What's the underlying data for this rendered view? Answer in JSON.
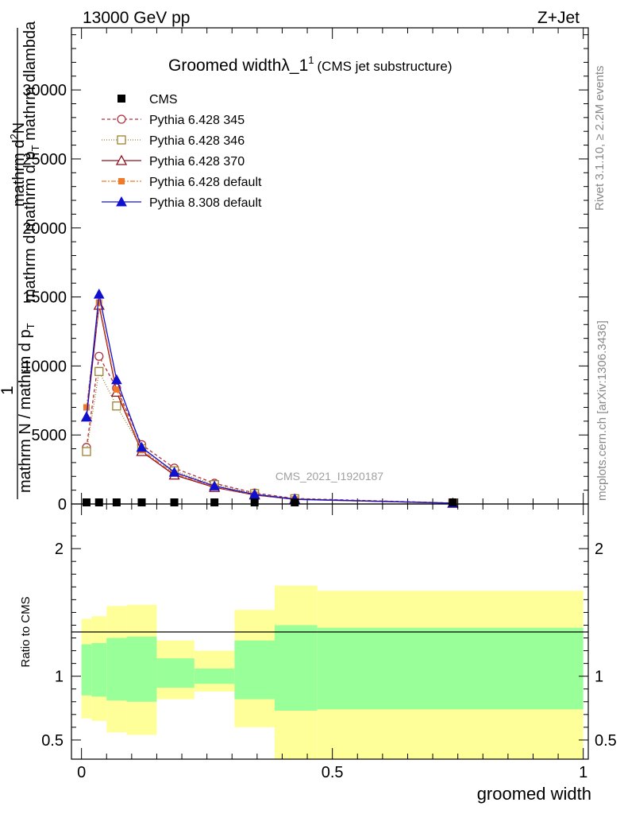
{
  "header": {
    "left": "13000 GeV pp",
    "right": "Z+Jet"
  },
  "side_labels": {
    "rivet": "Rivet 3.1.10, ≥ 2.2M events",
    "site": "mcplots.cern.ch [arXiv:1306.3436]"
  },
  "main_plot": {
    "title_main": "Groomed widthλ_1",
    "title_sup": "1",
    "title_sub": "(CMS jet substructure)",
    "watermark": "CMS_2021_I1920187",
    "ylabel": {
      "num_top": "1",
      "num_main": "mathrm d",
      "num_sup": "2",
      "num_rest": "N",
      "den_top": "mathrm N / mathrm d p",
      "den_sub": "T",
      "den_rest": " mathrm d lambda",
      "inner_left": "mathrm d p",
      "inner_sub": "T",
      "inner_rest": " mathrm dlambda",
      "big_one": "1"
    },
    "ylabel_lines": [
      "1",
      "mathrm d²N",
      "mathrm N / mathrm d p_T mathrm d lambda"
    ]
  },
  "ratio_plot": {
    "ylabel": "Ratio to CMS",
    "xlabel": "groomed width"
  },
  "legend": [
    {
      "name": "CMS",
      "color": "#000000",
      "marker": "square-filled",
      "dash": "none"
    },
    {
      "name": "Pythia 6.428 345",
      "color": "#b03040",
      "marker": "circle-open",
      "dash": "4,3"
    },
    {
      "name": "Pythia 6.428 346",
      "color": "#a08030",
      "marker": "square-open",
      "dash": "1,2"
    },
    {
      "name": "Pythia 6.428 370",
      "color": "#8b1020",
      "marker": "triangle-open",
      "dash": "none"
    },
    {
      "name": "Pythia 6.428 default",
      "color": "#f07a28",
      "marker": "square-filled-small",
      "dash": "6,2,2,2"
    },
    {
      "name": "Pythia 8.308 default",
      "color": "#1010d0",
      "marker": "triangle-filled",
      "dash": "none"
    }
  ],
  "chart_data": {
    "type": "line",
    "xlabel": "groomed width",
    "xlim": [
      -0.02,
      1.01
    ],
    "ylim_main": [
      0,
      34500
    ],
    "ylim_ratio": [
      0.35,
      2.35
    ],
    "x_ticks": [
      {
        "v": 0,
        "label": "0"
      },
      {
        "v": 0.5,
        "label": "0.5"
      },
      {
        "v": 1,
        "label": "1"
      }
    ],
    "y_ticks_main": [
      {
        "v": 0,
        "label": "0"
      },
      {
        "v": 5000,
        "label": "5000"
      },
      {
        "v": 10000,
        "label": "10000"
      },
      {
        "v": 15000,
        "label": "15000"
      },
      {
        "v": 20000,
        "label": "20000"
      },
      {
        "v": 25000,
        "label": "25000"
      },
      {
        "v": 30000,
        "label": "30000"
      }
    ],
    "y_ticks_ratio": [
      {
        "v": 0.5,
        "label": "0.5"
      },
      {
        "v": 1,
        "label": "1"
      },
      {
        "v": 2,
        "label": "2"
      }
    ],
    "cms_x": [
      0.01,
      0.035,
      0.07,
      0.12,
      0.185,
      0.265,
      0.345,
      0.425,
      0.74
    ],
    "series": [
      {
        "name": "Pythia 6.428 345",
        "x": [
          0.01,
          0.035,
          0.07,
          0.12,
          0.185,
          0.265,
          0.345,
          0.425,
          0.74
        ],
        "y": [
          4100,
          10700,
          8400,
          4300,
          2600,
          1500,
          800,
          400,
          70
        ]
      },
      {
        "name": "Pythia 6.428 346",
        "x": [
          0.01,
          0.035,
          0.07,
          0.12,
          0.185,
          0.265,
          0.345,
          0.425,
          0.74
        ],
        "y": [
          3800,
          9600,
          7100,
          4000,
          2400,
          1400,
          750,
          380,
          60
        ]
      },
      {
        "name": "Pythia 6.428 370",
        "x": [
          0.01,
          0.035,
          0.07,
          0.12,
          0.185,
          0.265,
          0.345,
          0.425,
          0.74
        ],
        "y": [
          6300,
          14400,
          8100,
          3800,
          2100,
          1200,
          650,
          330,
          55
        ]
      },
      {
        "name": "Pythia 6.428 default",
        "x": [
          0.01,
          0.035,
          0.07,
          0.12,
          0.185,
          0.265,
          0.345,
          0.425,
          0.74
        ],
        "y": [
          7000,
          14600,
          8300,
          3900,
          2200,
          1250,
          680,
          340,
          55
        ]
      },
      {
        "name": "Pythia 8.308 default",
        "x": [
          0.01,
          0.035,
          0.07,
          0.12,
          0.185,
          0.265,
          0.345,
          0.425,
          0.74
        ],
        "y": [
          6300,
          15200,
          9000,
          4100,
          2300,
          1300,
          700,
          350,
          60
        ]
      }
    ],
    "ratio_bands": [
      {
        "x0": 0.0,
        "x1": 0.02,
        "stat_lo": 0.85,
        "stat_hi": 1.25,
        "tot_lo": 0.67,
        "tot_hi": 1.45
      },
      {
        "x0": 0.02,
        "x1": 0.05,
        "stat_lo": 0.84,
        "stat_hi": 1.26,
        "tot_lo": 0.65,
        "tot_hi": 1.47
      },
      {
        "x0": 0.05,
        "x1": 0.09,
        "stat_lo": 0.81,
        "stat_hi": 1.3,
        "tot_lo": 0.56,
        "tot_hi": 1.55
      },
      {
        "x0": 0.09,
        "x1": 0.15,
        "stat_lo": 0.8,
        "stat_hi": 1.31,
        "tot_lo": 0.54,
        "tot_hi": 1.56
      },
      {
        "x0": 0.15,
        "x1": 0.225,
        "stat_lo": 0.91,
        "stat_hi": 1.14,
        "tot_lo": 0.82,
        "tot_hi": 1.28
      },
      {
        "x0": 0.225,
        "x1": 0.305,
        "stat_lo": 0.94,
        "stat_hi": 1.06,
        "tot_lo": 0.88,
        "tot_hi": 1.2
      },
      {
        "x0": 0.305,
        "x1": 0.385,
        "stat_lo": 0.82,
        "stat_hi": 1.28,
        "tot_lo": 0.6,
        "tot_hi": 1.52
      },
      {
        "x0": 0.385,
        "x1": 0.47,
        "stat_lo": 0.73,
        "stat_hi": 1.4,
        "tot_lo": 0.35,
        "tot_hi": 1.71
      },
      {
        "x0": 0.47,
        "x1": 1.0,
        "stat_lo": 0.74,
        "stat_hi": 1.38,
        "tot_lo": 0.35,
        "tot_hi": 1.67
      }
    ],
    "colors": {
      "stat_band": "#99ff99",
      "total_band": "#ffff99"
    }
  }
}
